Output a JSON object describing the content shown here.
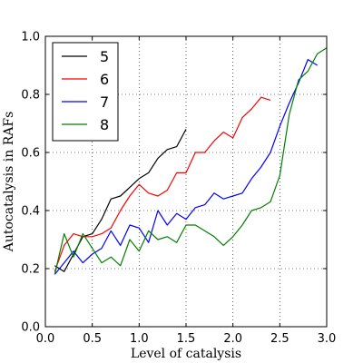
{
  "chart_data": {
    "type": "line",
    "xlabel": "Level of catalysis",
    "ylabel": "Autocatalysis in RAFs",
    "xlim": [
      0.0,
      3.0
    ],
    "ylim": [
      0.0,
      1.0
    ],
    "xticks": [
      "0.0",
      "0.5",
      "1.0",
      "1.5",
      "2.0",
      "2.5",
      "3.0"
    ],
    "yticks": [
      "0.0",
      "0.2",
      "0.4",
      "0.6",
      "0.8",
      "1.0"
    ],
    "grid": true,
    "legend_position": "top-left",
    "series": [
      {
        "name": "5",
        "color": "#000000",
        "x": [
          0.1,
          0.2,
          0.3,
          0.4,
          0.5,
          0.6,
          0.7,
          0.8,
          0.9,
          1.0,
          1.1,
          1.2,
          1.3,
          1.4,
          1.5
        ],
        "y": [
          0.21,
          0.19,
          0.25,
          0.31,
          0.32,
          0.37,
          0.44,
          0.45,
          0.48,
          0.51,
          0.53,
          0.58,
          0.61,
          0.62,
          0.68
        ]
      },
      {
        "name": "6",
        "color": "#ff0000",
        "x": [
          0.1,
          0.2,
          0.3,
          0.4,
          0.5,
          0.6,
          0.7,
          0.8,
          0.9,
          1.0,
          1.1,
          1.2,
          1.3,
          1.4,
          1.5,
          1.6,
          1.7,
          1.8,
          1.9,
          2.0,
          2.1,
          2.2,
          2.3,
          2.4
        ],
        "y": [
          0.19,
          0.28,
          0.32,
          0.31,
          0.31,
          0.32,
          0.34,
          0.4,
          0.45,
          0.49,
          0.46,
          0.45,
          0.47,
          0.53,
          0.53,
          0.6,
          0.6,
          0.64,
          0.67,
          0.65,
          0.72,
          0.75,
          0.79,
          0.78
        ]
      },
      {
        "name": "7",
        "color": "#0000ff",
        "x": [
          0.1,
          0.2,
          0.3,
          0.4,
          0.5,
          0.6,
          0.7,
          0.8,
          0.9,
          1.0,
          1.1,
          1.2,
          1.3,
          1.4,
          1.5,
          1.6,
          1.7,
          1.8,
          1.9,
          2.0,
          2.1,
          2.2,
          2.3,
          2.4,
          2.5,
          2.6,
          2.7,
          2.8,
          2.9
        ],
        "y": [
          0.18,
          0.22,
          0.26,
          0.22,
          0.25,
          0.27,
          0.33,
          0.28,
          0.35,
          0.34,
          0.29,
          0.4,
          0.35,
          0.39,
          0.37,
          0.41,
          0.42,
          0.46,
          0.44,
          0.45,
          0.46,
          0.51,
          0.55,
          0.6,
          0.69,
          0.77,
          0.84,
          0.92,
          0.9
        ]
      },
      {
        "name": "8",
        "color": "#008000",
        "x": [
          0.1,
          0.2,
          0.3,
          0.4,
          0.5,
          0.6,
          0.7,
          0.8,
          0.9,
          1.0,
          1.1,
          1.2,
          1.3,
          1.4,
          1.5,
          1.6,
          1.7,
          1.8,
          1.9,
          2.0,
          2.1,
          2.2,
          2.3,
          2.4,
          2.5,
          2.6,
          2.7,
          2.8,
          2.9,
          3.0
        ],
        "y": [
          0.18,
          0.32,
          0.24,
          0.32,
          0.27,
          0.22,
          0.24,
          0.21,
          0.3,
          0.26,
          0.33,
          0.3,
          0.31,
          0.29,
          0.35,
          0.35,
          0.33,
          0.31,
          0.28,
          0.31,
          0.35,
          0.4,
          0.41,
          0.43,
          0.52,
          0.73,
          0.85,
          0.88,
          0.94,
          0.96
        ]
      }
    ]
  }
}
